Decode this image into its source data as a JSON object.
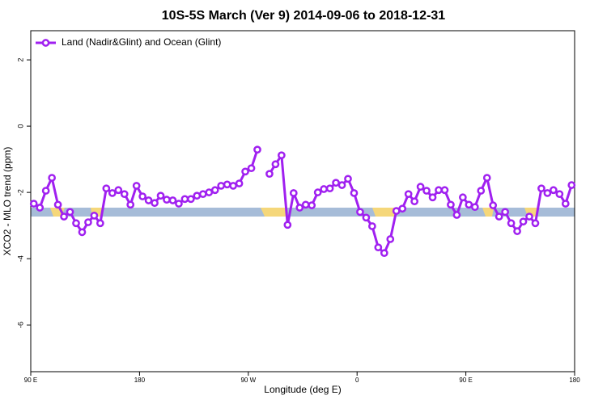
{
  "chart_data": {
    "type": "line",
    "title": "10S-5S March (Ver 9)   2014-09-06 to 2018-12-31",
    "x_label": "Longitude (deg E)",
    "y_label": "XCO2 - MLO trend (ppm)",
    "legend_position": "top-left",
    "xlim": [
      90,
      540
    ],
    "xticks": [
      {
        "value": 90,
        "label": "90 E"
      },
      180,
      {
        "value": 270,
        "label": "90 W"
      },
      {
        "value": 360,
        "label": "0"
      },
      {
        "value": 450,
        "label": "90 E"
      },
      {
        "value": 540,
        "label": "180"
      }
    ],
    "ylim": [
      -7.41,
      2.88
    ],
    "yticks": [
      2,
      0,
      -2,
      -4,
      -6
    ],
    "x": [
      92.5,
      97.5,
      102.5,
      107.5,
      112.5,
      117.5,
      122.5,
      127.5,
      132.5,
      137.5,
      142.5,
      147.5,
      152.5,
      157.5,
      162.5,
      167.5,
      172.5,
      177.5,
      182.5,
      187.5,
      192.5,
      197.5,
      202.5,
      207.5,
      212.5,
      217.5,
      222.5,
      227.5,
      232.5,
      237.5,
      242.5,
      247.5,
      252.5,
      257.5,
      262.5,
      267.5,
      272.5,
      277.5,
      282.5,
      287.5,
      292.5,
      297.5,
      302.5,
      307.5,
      312.5,
      317.5,
      322.5,
      327.5,
      332.5,
      337.5,
      342.5,
      347.5,
      352.5,
      357.5,
      362.5,
      367.5,
      372.5,
      377.5,
      382.5,
      387.5,
      392.5,
      397.5,
      402.5,
      407.5,
      412.5,
      417.5,
      422.5,
      427.5,
      432.5,
      437.5,
      442.5,
      447.5,
      452.5,
      457.5,
      462.5,
      467.5,
      472.5,
      477.5,
      482.5,
      487.5,
      492.5,
      497.5,
      502.5,
      507.5,
      512.5,
      517.5,
      522.5,
      527.5,
      532.5,
      537.5
    ],
    "series": [
      {
        "name": "Land (Nadir&Glint) and Ocean (Glint)",
        "color": "#a020f0",
        "values": [
          -2.34,
          -2.46,
          -1.95,
          -1.56,
          -2.37,
          -2.73,
          -2.59,
          -2.93,
          -3.2,
          -2.9,
          -2.7,
          -2.93,
          -1.88,
          -2.02,
          -1.93,
          -2.05,
          -2.37,
          -1.8,
          -2.12,
          -2.24,
          -2.32,
          -2.1,
          -2.22,
          -2.24,
          -2.34,
          -2.2,
          -2.2,
          -2.1,
          -2.05,
          -2.0,
          -1.93,
          -1.8,
          -1.76,
          -1.8,
          -1.73,
          -1.37,
          -1.27,
          -0.71,
          null,
          -1.44,
          -1.15,
          -0.88,
          -2.98,
          -2.02,
          -2.46,
          -2.37,
          -2.39,
          -2.0,
          -1.9,
          -1.88,
          -1.71,
          -1.78,
          -1.59,
          -2.02,
          -2.59,
          -2.76,
          -3.02,
          -3.66,
          -3.83,
          -3.41,
          -2.56,
          -2.49,
          -2.05,
          -2.27,
          -1.83,
          -1.95,
          -2.15,
          -1.93,
          -1.93,
          -2.37,
          -2.68,
          -2.15,
          -2.37,
          -2.44,
          -1.95,
          -1.56,
          -2.39,
          -2.73,
          -2.59,
          -2.93,
          -3.17,
          -2.88,
          -2.73,
          -2.93,
          -1.88,
          -2.02,
          -1.93,
          -2.05,
          -2.34,
          -1.78
        ]
      }
    ]
  }
}
